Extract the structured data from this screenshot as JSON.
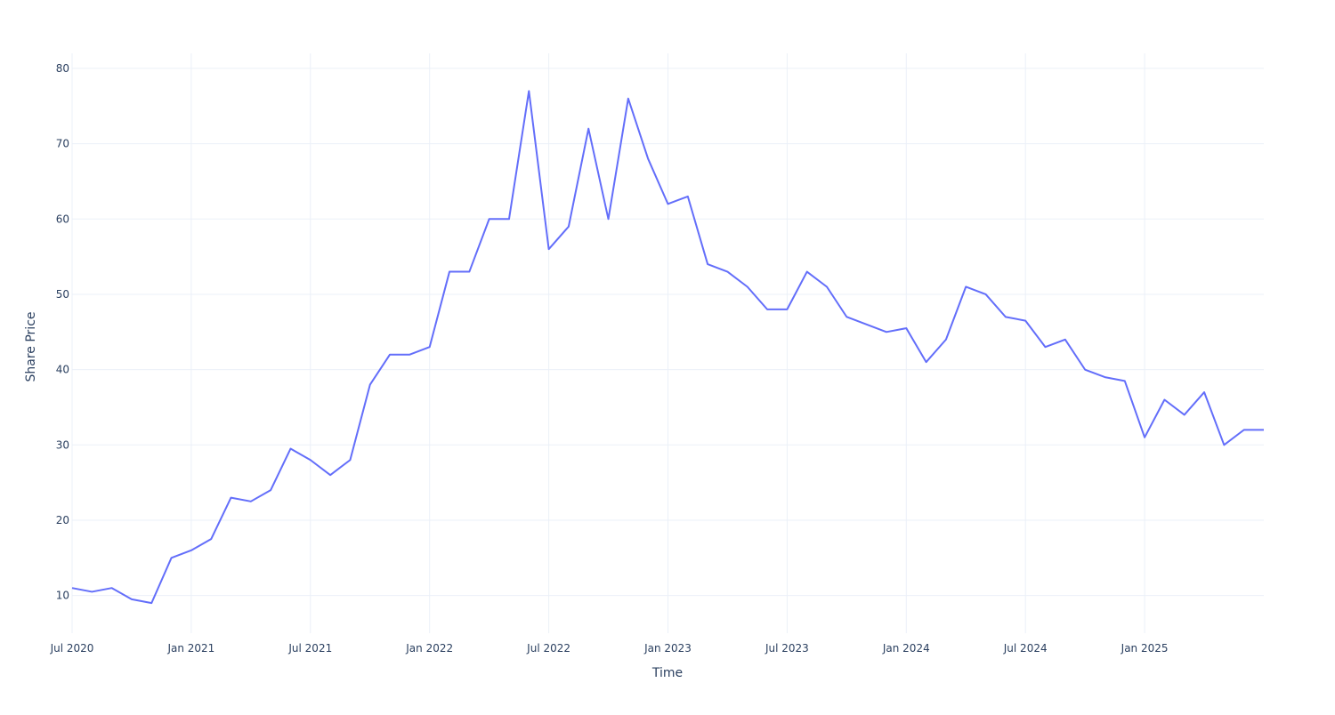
{
  "chart_data": {
    "type": "line",
    "x_label": "Time",
    "y_label": "Share Price",
    "x": [
      "2020-07",
      "2020-08",
      "2020-09",
      "2020-10",
      "2020-11",
      "2020-12",
      "2021-01",
      "2021-02",
      "2021-03",
      "2021-04",
      "2021-05",
      "2021-06",
      "2021-07",
      "2021-08",
      "2021-09",
      "2021-10",
      "2021-11",
      "2021-12",
      "2022-01",
      "2022-02",
      "2022-03",
      "2022-04",
      "2022-05",
      "2022-06",
      "2022-07",
      "2022-08",
      "2022-09",
      "2022-10",
      "2022-11",
      "2022-12",
      "2023-01",
      "2023-02",
      "2023-03",
      "2023-04",
      "2023-05",
      "2023-06",
      "2023-07",
      "2023-08",
      "2023-09",
      "2023-10",
      "2023-11",
      "2023-12",
      "2024-01",
      "2024-02",
      "2024-03",
      "2024-04",
      "2024-05",
      "2024-06",
      "2024-07",
      "2024-08",
      "2024-09",
      "2024-10",
      "2024-11",
      "2024-12",
      "2025-01",
      "2025-02",
      "2025-03",
      "2025-04",
      "2025-05",
      "2025-06",
      "2025-07"
    ],
    "series": [
      {
        "name": "Share Price",
        "color": "#636efa",
        "values": [
          11,
          10.5,
          11,
          9.5,
          9,
          15,
          16,
          17.5,
          23,
          22.5,
          24,
          29.5,
          28,
          26,
          28,
          38,
          42,
          42,
          43,
          53,
          53,
          60,
          60,
          77,
          56,
          59,
          72,
          60,
          76,
          68,
          62,
          63,
          54,
          53,
          51,
          48,
          48,
          53,
          51,
          47,
          46,
          45,
          45.5,
          41,
          44,
          51,
          50,
          47,
          46.5,
          43,
          44,
          40,
          39,
          38.5,
          31,
          36,
          34,
          37,
          30,
          32,
          32
        ]
      }
    ],
    "xlim": [
      "2020-07",
      "2025-07"
    ],
    "xticks": [
      {
        "value": "2020-07",
        "label": "Jul 2020"
      },
      {
        "value": "2021-01",
        "label": "Jan 2021"
      },
      {
        "value": "2021-07",
        "label": "Jul 2021"
      },
      {
        "value": "2022-01",
        "label": "Jan 2022"
      },
      {
        "value": "2022-07",
        "label": "Jul 2022"
      },
      {
        "value": "2023-01",
        "label": "Jan 2023"
      },
      {
        "value": "2023-07",
        "label": "Jul 2023"
      },
      {
        "value": "2024-01",
        "label": "Jan 2024"
      },
      {
        "value": "2024-07",
        "label": "Jul 2024"
      },
      {
        "value": "2025-01",
        "label": "Jan 2025"
      }
    ],
    "ylim": [
      5,
      82
    ],
    "yticks": [
      10,
      20,
      30,
      40,
      50,
      60,
      70,
      80
    ],
    "grid": true
  }
}
